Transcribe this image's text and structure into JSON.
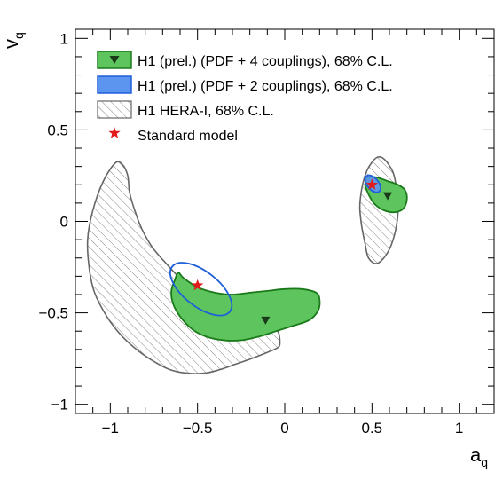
{
  "chart_data": {
    "type": "scatter",
    "xlabel": "a",
    "xlabel_sub": "q",
    "ylabel": "v",
    "ylabel_sub": "q",
    "xlim": [
      -1.2,
      1.2
    ],
    "ylim": [
      -1.05,
      1.05
    ],
    "x_ticks": [
      -1,
      -0.5,
      0,
      0.5,
      1
    ],
    "x_tick_labels": [
      "−1",
      "−0.5",
      "0",
      "0.5",
      "1"
    ],
    "y_ticks": [
      -1,
      -0.5,
      0,
      0.5,
      1
    ],
    "y_tick_labels": [
      "−1",
      "−0.5",
      "0",
      "0.5",
      "1"
    ],
    "grid": false,
    "legend_position": "top-left",
    "legend": [
      {
        "label": "H1 (prel.) (PDF + 4 couplings), 68% C.L.",
        "style": "green-fill-triangle"
      },
      {
        "label": "H1 (prel.) (PDF + 2 couplings), 68% C.L.",
        "style": "blue-fill"
      },
      {
        "label": "H1 HERA-I, 68% C.L.",
        "style": "hatched"
      },
      {
        "label": "Standard model",
        "style": "red-star"
      }
    ],
    "colors": {
      "green_fill": "#5ec45e",
      "green_line": "#1a7a1a",
      "blue_fill": "#5b95f0",
      "blue_line": "#1f5fd8",
      "hatch_line": "#666666",
      "star": "#e31a1c",
      "marker": "#1a3a1a"
    },
    "series": [
      {
        "name": "H1 HERA-I, 68% C.L.",
        "kind": "contour",
        "x": [
          -0.97,
          -1.04,
          -1.1,
          -1.13,
          -1.12,
          -1.09,
          -1.02,
          -0.94,
          -0.85,
          -0.76,
          -0.66,
          -0.56,
          -0.46,
          -0.37,
          -0.28,
          -0.19,
          -0.11,
          -0.06,
          -0.03,
          -0.03,
          -0.04,
          -0.06,
          -0.12,
          -0.2,
          -0.3,
          -0.4,
          -0.5,
          -0.6,
          -0.68,
          -0.76,
          -0.82,
          -0.86,
          -0.89,
          -0.9,
          -0.93,
          -0.97
        ],
        "y": [
          0.32,
          0.22,
          0.06,
          -0.1,
          -0.26,
          -0.39,
          -0.52,
          -0.62,
          -0.7,
          -0.76,
          -0.81,
          -0.83,
          -0.83,
          -0.81,
          -0.78,
          -0.75,
          -0.72,
          -0.7,
          -0.68,
          -0.63,
          -0.6,
          -0.58,
          -0.56,
          -0.53,
          -0.49,
          -0.44,
          -0.38,
          -0.31,
          -0.23,
          -0.14,
          -0.04,
          0.06,
          0.16,
          0.25,
          0.31,
          0.32
        ]
      },
      {
        "name": "H1 HERA-I, 68% C.L. (right region)",
        "kind": "contour",
        "x": [
          0.57,
          0.62,
          0.64,
          0.65,
          0.63,
          0.59,
          0.53,
          0.48,
          0.46,
          0.44,
          0.43,
          0.44,
          0.46,
          0.49,
          0.53,
          0.57
        ],
        "y": [
          0.34,
          0.27,
          0.18,
          0.06,
          -0.07,
          -0.17,
          -0.23,
          -0.2,
          -0.12,
          -0.02,
          0.08,
          0.17,
          0.25,
          0.31,
          0.35,
          0.34
        ]
      },
      {
        "name": "H1 (prel.) (PDF + 4 couplings), 68% C.L.",
        "kind": "contour",
        "x": [
          -0.61,
          -0.58,
          -0.5,
          -0.4,
          -0.3,
          -0.2,
          -0.1,
          0.0,
          0.1,
          0.18,
          0.2,
          0.19,
          0.14,
          0.05,
          -0.05,
          -0.15,
          -0.25,
          -0.35,
          -0.45,
          -0.53,
          -0.6,
          -0.64,
          -0.65,
          -0.63,
          -0.61
        ],
        "y": [
          -0.28,
          -0.31,
          -0.36,
          -0.39,
          -0.4,
          -0.39,
          -0.38,
          -0.37,
          -0.37,
          -0.39,
          -0.43,
          -0.49,
          -0.54,
          -0.57,
          -0.6,
          -0.63,
          -0.65,
          -0.65,
          -0.63,
          -0.59,
          -0.52,
          -0.45,
          -0.38,
          -0.32,
          -0.28
        ]
      },
      {
        "name": "H1 (prel.) (PDF + 4 couplings), 68% C.L. (right region)",
        "kind": "contour",
        "x": [
          0.48,
          0.53,
          0.59,
          0.65,
          0.69,
          0.7,
          0.68,
          0.63,
          0.57,
          0.52,
          0.49,
          0.47,
          0.46,
          0.47,
          0.48
        ],
        "y": [
          0.24,
          0.24,
          0.22,
          0.2,
          0.17,
          0.12,
          0.07,
          0.05,
          0.06,
          0.09,
          0.13,
          0.17,
          0.2,
          0.23,
          0.24
        ]
      },
      {
        "name": "H1 (prel.) (PDF + 2 couplings), 68% C.L.",
        "kind": "ellipse",
        "cx": -0.48,
        "cy": -0.37,
        "rx": 0.1,
        "ry": 0.2,
        "angle_deg": -52
      },
      {
        "name": "H1 (prel.) (PDF + 2 couplings), 68% C.L. (right region)",
        "kind": "ellipse",
        "cx": 0.505,
        "cy": 0.205,
        "rx": 0.033,
        "ry": 0.055,
        "angle_deg": -40
      },
      {
        "name": "Best fit (PDF + 4 couplings)",
        "kind": "marker-triangle",
        "points": [
          [
            -0.11,
            -0.54
          ],
          [
            0.59,
            0.14
          ]
        ]
      },
      {
        "name": "Standard model",
        "kind": "marker-star",
        "points": [
          [
            -0.5,
            -0.35
          ],
          [
            0.5,
            0.2
          ]
        ]
      }
    ]
  }
}
